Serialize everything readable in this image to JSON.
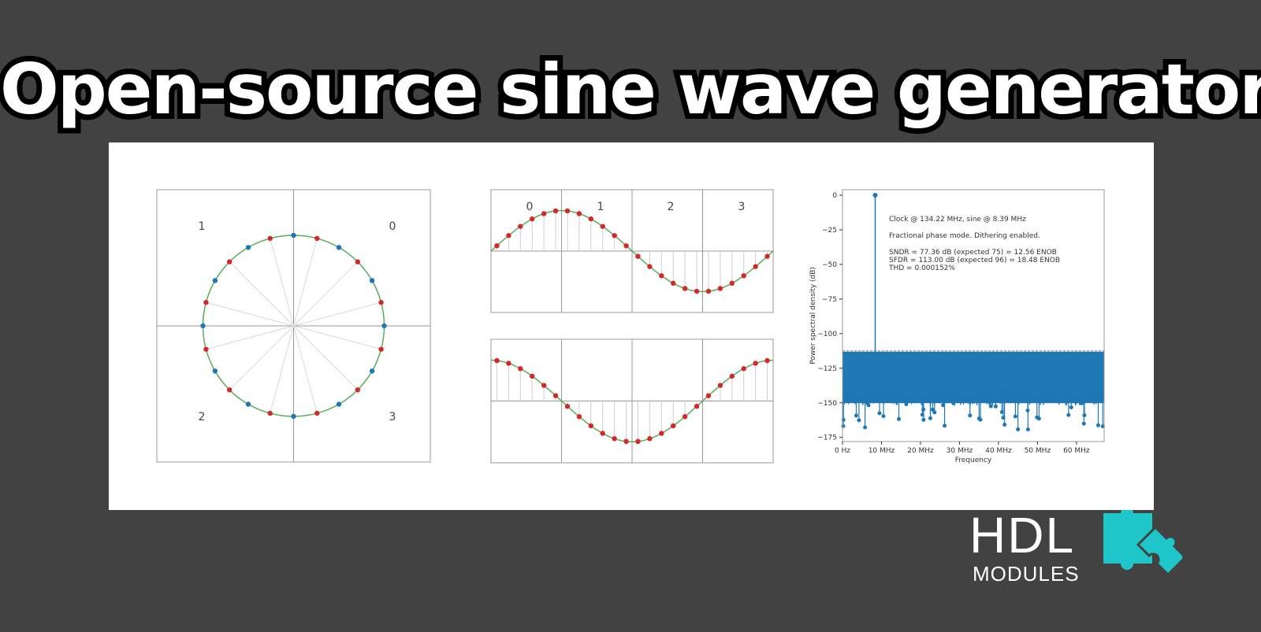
{
  "page": {
    "title": "Open-source sine wave generator",
    "logo": {
      "main": "HDL",
      "sub": "MODULES",
      "icon": "puzzle-icon",
      "icon_color": "#1fc6c9"
    }
  },
  "colors": {
    "curve": "#5aad5a",
    "red_point": "#d62728",
    "blue_point": "#1f77b4",
    "grid": "#b0b0b0"
  },
  "chart_data": [
    {
      "type": "scatter",
      "name": "phase-circle",
      "n_points": 24,
      "quadrant_labels": [
        "0",
        "1",
        "2",
        "3"
      ],
      "blue_point_angles_deg": [
        0,
        30,
        60,
        90,
        120,
        150,
        180,
        210,
        240,
        270,
        300,
        330
      ],
      "red_point_angles_deg": [
        15,
        45,
        75,
        105,
        135,
        165,
        195,
        225,
        255,
        285,
        315,
        345
      ]
    },
    {
      "type": "line",
      "name": "sine-lookup",
      "segment_labels": [
        "0",
        "1",
        "2",
        "3"
      ],
      "phase_offset_deg": 7.5,
      "sample_step_deg": 15,
      "periods": 1
    },
    {
      "type": "line",
      "name": "cosine-lookup",
      "segment_labels": [],
      "phase_offset_deg": 7.5,
      "sample_step_deg": 15,
      "periods": 1
    },
    {
      "type": "line",
      "name": "spectrum",
      "xlabel": "Frequency",
      "ylabel": "Power spectral density (dB)",
      "xticks": [
        "0 Hz",
        "10 MHz",
        "20 MHz",
        "30 MHz",
        "40 MHz",
        "50 MHz",
        "60 MHz"
      ],
      "xtick_values": [
        0,
        10,
        20,
        30,
        40,
        50,
        60
      ],
      "xlim": [
        0,
        67.1
      ],
      "yticks": [
        "0",
        "−25",
        "−50",
        "−75",
        "−100",
        "−125",
        "−150",
        "−175"
      ],
      "ytick_values": [
        0,
        -25,
        -50,
        -75,
        -100,
        -125,
        -150,
        -175
      ],
      "ylim": [
        -178,
        4
      ],
      "peak": {
        "x": 8.39,
        "y": 0
      },
      "noise_floor": {
        "top": -113,
        "bottom": -150,
        "dip_min": -170
      },
      "annotations": [
        "Clock @ 134.22 MHz, sine @ 8.39 MHz",
        "Fractional phase mode. Dithering enabled.",
        "SNDR = 77.36 dB (expected 75) = 12.56 ENOB",
        "SFDR = 113.00 dB (expected 96) = 18.48 ENOB",
        "THD = 0.000152%"
      ]
    }
  ]
}
